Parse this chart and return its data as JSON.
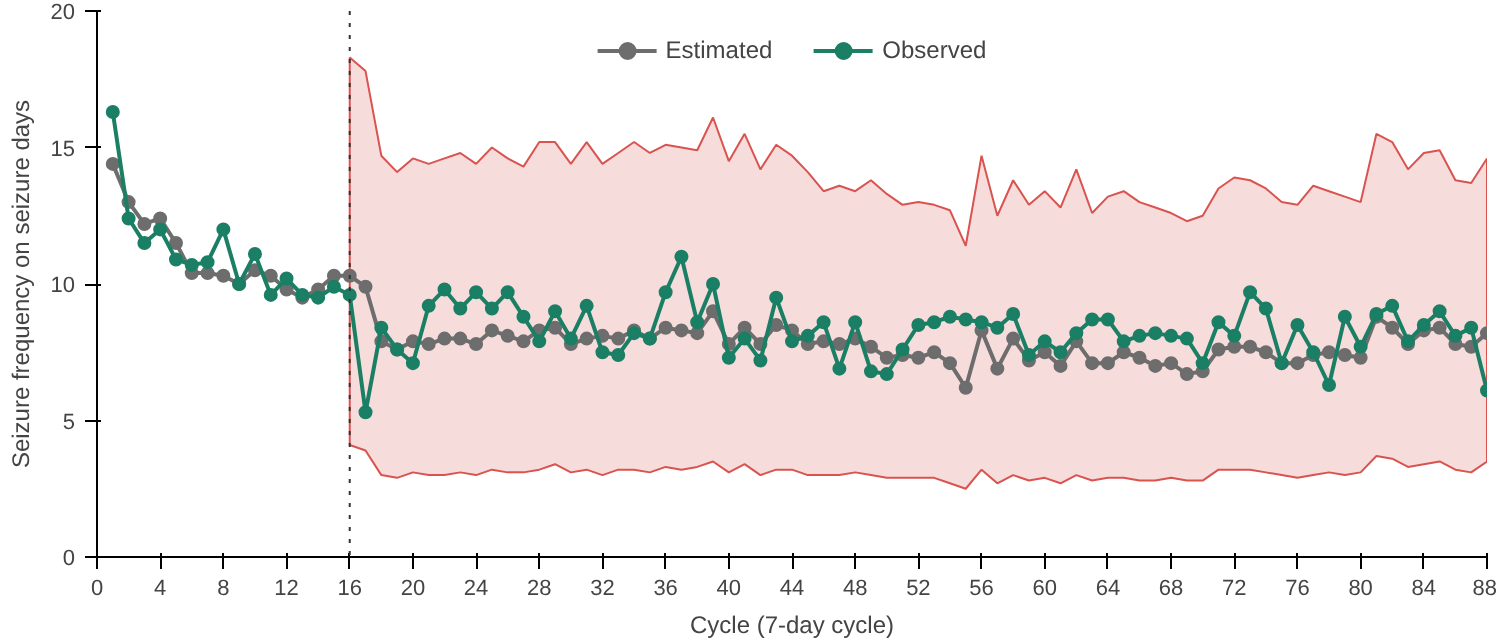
{
  "chart_data": {
    "type": "line",
    "xlabel": "Cycle (7-day cycle)",
    "ylabel": "Seizure frequency on seizure days",
    "x": [
      1,
      2,
      3,
      4,
      5,
      6,
      7,
      8,
      9,
      10,
      11,
      12,
      13,
      14,
      15,
      16,
      17,
      18,
      19,
      20,
      21,
      22,
      23,
      24,
      25,
      26,
      27,
      28,
      29,
      30,
      31,
      32,
      33,
      34,
      35,
      36,
      37,
      38,
      39,
      40,
      41,
      42,
      43,
      44,
      45,
      46,
      47,
      48,
      49,
      50,
      51,
      52,
      53,
      54,
      55,
      56,
      57,
      58,
      59,
      60,
      61,
      62,
      63,
      64,
      65,
      66,
      67,
      68,
      69,
      70,
      71,
      72,
      73,
      74,
      75,
      76,
      77,
      78,
      79,
      80,
      81,
      82,
      83,
      84,
      85,
      86,
      87,
      88
    ],
    "series": [
      {
        "name": "Estimated",
        "color": "#6d6d6d",
        "values": [
          14.4,
          13.0,
          12.2,
          12.4,
          11.5,
          10.4,
          10.4,
          10.3,
          10.0,
          10.5,
          10.3,
          9.8,
          9.5,
          9.8,
          10.3,
          10.3,
          9.9,
          7.9,
          7.6,
          7.9,
          7.8,
          8.0,
          8.0,
          7.8,
          8.3,
          8.1,
          7.9,
          8.3,
          8.4,
          7.8,
          8.0,
          8.1,
          8.0,
          8.3,
          8.0,
          8.4,
          8.3,
          8.2,
          9.0,
          7.8,
          8.4,
          7.8,
          8.5,
          8.3,
          7.8,
          7.9,
          7.8,
          8.0,
          7.7,
          7.3,
          7.4,
          7.3,
          7.5,
          7.1,
          6.2,
          8.3,
          6.9,
          8.0,
          7.2,
          7.5,
          7.0,
          7.9,
          7.1,
          7.1,
          7.5,
          7.3,
          7.0,
          7.1,
          6.7,
          6.8,
          7.6,
          7.7,
          7.7,
          7.5,
          7.1,
          7.1,
          7.4,
          7.5,
          7.4,
          7.3,
          8.8,
          8.4,
          7.8,
          8.3,
          8.4,
          7.8,
          7.7,
          8.2
        ],
        "lower": [
          null,
          null,
          null,
          null,
          null,
          null,
          null,
          null,
          null,
          null,
          null,
          null,
          null,
          null,
          null,
          4.1,
          3.9,
          3.0,
          2.9,
          3.1,
          3.0,
          3.0,
          3.1,
          3.0,
          3.2,
          3.1,
          3.1,
          3.2,
          3.4,
          3.1,
          3.2,
          3.0,
          3.2,
          3.2,
          3.1,
          3.3,
          3.2,
          3.3,
          3.5,
          3.1,
          3.4,
          3.0,
          3.2,
          3.2,
          3.0,
          3.0,
          3.0,
          3.1,
          3.0,
          2.9,
          2.9,
          2.9,
          2.9,
          2.7,
          2.5,
          3.2,
          2.7,
          3.0,
          2.8,
          2.9,
          2.7,
          3.0,
          2.8,
          2.9,
          2.9,
          2.8,
          2.8,
          2.9,
          2.8,
          2.8,
          3.2,
          3.2,
          3.2,
          3.1,
          3.0,
          2.9,
          3.0,
          3.1,
          3.0,
          3.1,
          3.7,
          3.6,
          3.3,
          3.4,
          3.5,
          3.2,
          3.1,
          3.5
        ],
        "upper": [
          null,
          null,
          null,
          null,
          null,
          null,
          null,
          null,
          null,
          null,
          null,
          null,
          null,
          null,
          null,
          18.3,
          17.8,
          14.7,
          14.1,
          14.6,
          14.4,
          14.6,
          14.8,
          14.4,
          15.0,
          14.6,
          14.3,
          15.2,
          15.2,
          14.4,
          15.2,
          14.4,
          14.8,
          15.2,
          14.8,
          15.1,
          15.0,
          14.9,
          16.1,
          14.5,
          15.5,
          14.2,
          15.1,
          14.7,
          14.1,
          13.4,
          13.6,
          13.4,
          13.8,
          13.3,
          12.9,
          13.0,
          12.9,
          12.7,
          11.4,
          14.7,
          12.5,
          13.8,
          12.9,
          13.4,
          12.8,
          14.2,
          12.6,
          13.2,
          13.4,
          13.0,
          12.8,
          12.6,
          12.3,
          12.5,
          13.5,
          13.9,
          13.8,
          13.5,
          13.0,
          12.9,
          13.6,
          13.4,
          13.2,
          13.0,
          15.5,
          15.2,
          14.2,
          14.8,
          14.9,
          13.8,
          13.7,
          14.6
        ]
      },
      {
        "name": "Observed",
        "color": "#1a7f64",
        "values": [
          16.3,
          12.4,
          11.5,
          12.0,
          10.9,
          10.7,
          10.8,
          12.0,
          10.0,
          11.1,
          9.6,
          10.2,
          9.6,
          9.5,
          9.9,
          9.6,
          5.3,
          8.4,
          7.6,
          7.1,
          9.2,
          9.8,
          9.1,
          9.7,
          9.1,
          9.7,
          8.8,
          7.9,
          9.0,
          8.0,
          9.2,
          7.5,
          7.4,
          8.2,
          8.0,
          9.7,
          11.0,
          8.6,
          10.0,
          7.3,
          8.0,
          7.2,
          9.5,
          7.9,
          8.1,
          8.6,
          6.9,
          8.6,
          6.8,
          6.7,
          7.6,
          8.5,
          8.6,
          8.8,
          8.7,
          8.6,
          8.4,
          8.9,
          7.4,
          7.9,
          7.5,
          8.2,
          8.7,
          8.7,
          7.9,
          8.1,
          8.2,
          8.1,
          8.0,
          7.1,
          8.6,
          8.1,
          9.7,
          9.1,
          7.1,
          8.5,
          7.5,
          6.3,
          8.8,
          7.7,
          8.9,
          9.2,
          7.9,
          8.5,
          9.0,
          8.1,
          8.4,
          6.1
        ]
      }
    ],
    "xlim": [
      0,
      88
    ],
    "xticks": [
      0,
      4,
      8,
      12,
      16,
      20,
      24,
      28,
      32,
      36,
      40,
      44,
      48,
      52,
      56,
      60,
      64,
      68,
      72,
      76,
      80,
      84,
      88
    ],
    "ylim": [
      0,
      20
    ],
    "yticks": [
      0,
      5,
      10,
      15,
      20
    ],
    "ref_lines": [
      {
        "axis": "x",
        "value": 16,
        "color": "#333333",
        "line_style": "dotted"
      }
    ],
    "grid": false,
    "legend": "top",
    "marker": "circle",
    "line_style": "solid"
  }
}
